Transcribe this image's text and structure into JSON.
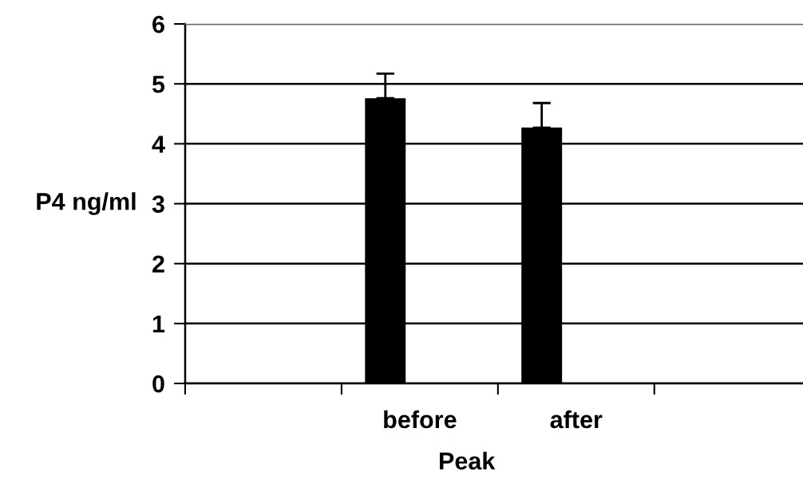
{
  "chart_data": {
    "type": "bar",
    "xlabel": "Peak",
    "ylabel": "P4 ng/ml",
    "categories": [
      null,
      "before",
      "after",
      null
    ],
    "series": [
      {
        "color": "#000000",
        "values": [
          null,
          4.76,
          4.27,
          null
        ],
        "errors": [
          null,
          0.41,
          0.41,
          null
        ]
      }
    ],
    "ylim": [
      0,
      6
    ],
    "yticks": [
      0,
      1,
      2,
      3,
      4,
      5,
      6
    ],
    "grid": "y"
  }
}
